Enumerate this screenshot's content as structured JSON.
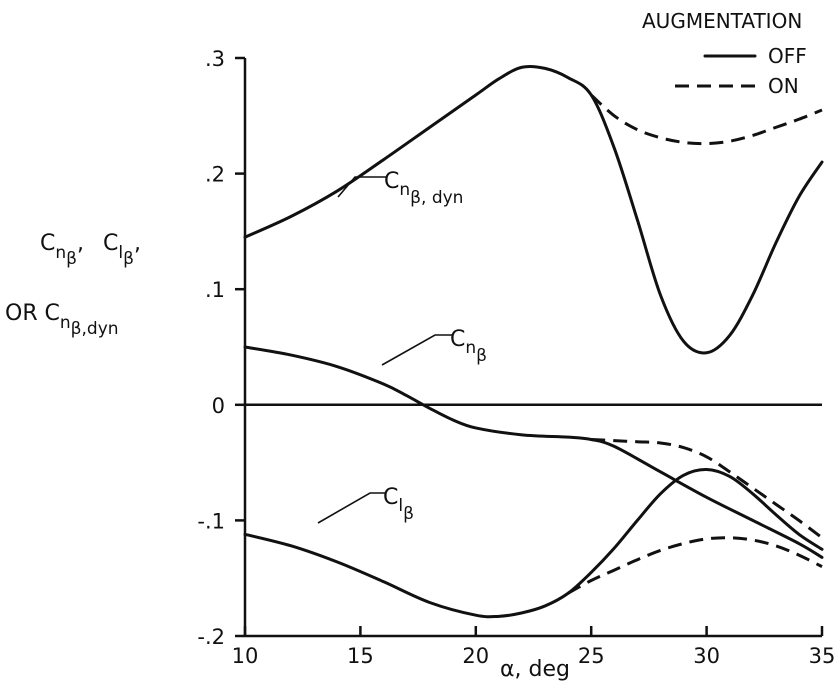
{
  "chart_data": {
    "type": "line",
    "xlabel": "α, deg",
    "ylabel": {
      "line1": [
        "C",
        "n",
        "β"
      ],
      "line2": [
        "C",
        "l",
        "β"
      ],
      "line3_prefix": "OR",
      "line3": [
        "C",
        "n",
        "β,dyn"
      ]
    },
    "xlim": [
      10,
      35
    ],
    "ylim": [
      -0.2,
      0.3
    ],
    "xticks": [
      10,
      15,
      20,
      25,
      30,
      35
    ],
    "xtick_labels": [
      "10",
      "15",
      "20",
      "25",
      "30",
      "35"
    ],
    "yticks": [
      -0.2,
      -0.1,
      0,
      0.1,
      0.2,
      0.3
    ],
    "ytick_labels": [
      "-.2",
      "-.1",
      "0",
      ".1",
      ".2",
      ".3"
    ],
    "legend": {
      "title": "AUGMENTATION",
      "entries": [
        {
          "label": "OFF",
          "style": "solid"
        },
        {
          "label": "ON",
          "style": "dashed"
        }
      ],
      "position": "top-right"
    },
    "reference_line": {
      "y": 0
    },
    "curve_labels": {
      "cn_beta_dyn": {
        "main": "C",
        "sub": "n",
        "subsub": "β, dyn"
      },
      "cn_beta": {
        "main": "C",
        "sub": "n",
        "subsub": "β"
      },
      "cl_beta": {
        "main": "C",
        "sub": "l",
        "subsub": "β"
      }
    },
    "series": [
      {
        "id": "cn_beta_dyn_off",
        "style": "solid",
        "x": [
          10,
          12,
          14,
          16,
          18,
          20,
          21,
          22,
          23,
          24,
          25,
          26,
          27,
          28,
          29,
          30,
          31,
          32,
          33,
          34,
          35
        ],
        "y": [
          0.145,
          0.163,
          0.185,
          0.212,
          0.24,
          0.268,
          0.282,
          0.292,
          0.291,
          0.283,
          0.268,
          0.222,
          0.16,
          0.095,
          0.055,
          0.045,
          0.06,
          0.095,
          0.14,
          0.18,
          0.21
        ]
      },
      {
        "id": "cn_beta_dyn_on",
        "style": "dashed",
        "x": [
          25,
          26,
          27,
          28,
          29,
          30,
          31,
          32,
          33,
          34,
          35
        ],
        "y": [
          0.268,
          0.25,
          0.238,
          0.231,
          0.227,
          0.226,
          0.228,
          0.233,
          0.24,
          0.247,
          0.255
        ]
      },
      {
        "id": "cn_beta_off",
        "style": "solid",
        "x": [
          10,
          12,
          14,
          16,
          17,
          18,
          19,
          20,
          22,
          24,
          25,
          26,
          28,
          30,
          32,
          34,
          35
        ],
        "y": [
          0.05,
          0.043,
          0.033,
          0.018,
          0.008,
          -0.003,
          -0.013,
          -0.02,
          -0.026,
          -0.028,
          -0.03,
          -0.036,
          -0.058,
          -0.08,
          -0.1,
          -0.12,
          -0.132
        ]
      },
      {
        "id": "cn_beta_on",
        "style": "dashed",
        "x": [
          25,
          26,
          27,
          28,
          29,
          30,
          31,
          32,
          33,
          34,
          35
        ],
        "y": [
          -0.03,
          -0.031,
          -0.032,
          -0.033,
          -0.037,
          -0.045,
          -0.058,
          -0.072,
          -0.086,
          -0.1,
          -0.115
        ]
      },
      {
        "id": "cl_beta_off",
        "style": "solid",
        "x": [
          10,
          12,
          14,
          16,
          18,
          20,
          21,
          22,
          23,
          24,
          25,
          26,
          27,
          28,
          29,
          30,
          31,
          32,
          33,
          34,
          35
        ],
        "y": [
          -0.112,
          -0.122,
          -0.136,
          -0.153,
          -0.171,
          -0.182,
          -0.183,
          -0.18,
          -0.174,
          -0.163,
          -0.145,
          -0.124,
          -0.1,
          -0.077,
          -0.061,
          -0.056,
          -0.062,
          -0.077,
          -0.095,
          -0.112,
          -0.125
        ]
      },
      {
        "id": "cl_beta_on",
        "style": "dashed",
        "x": [
          24,
          25,
          26,
          27,
          28,
          29,
          30,
          31,
          32,
          33,
          34,
          35
        ],
        "y": [
          -0.163,
          -0.152,
          -0.143,
          -0.134,
          -0.126,
          -0.12,
          -0.116,
          -0.115,
          -0.117,
          -0.122,
          -0.13,
          -0.14
        ]
      }
    ]
  }
}
